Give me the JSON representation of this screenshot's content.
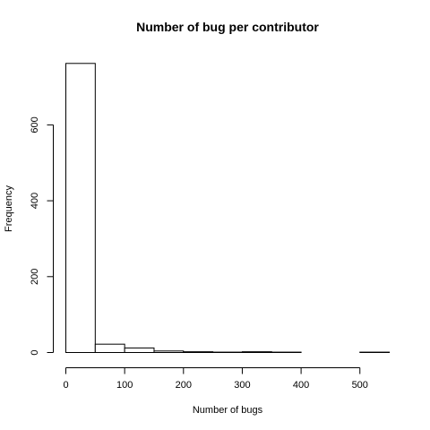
{
  "chart_data": {
    "type": "bar",
    "title": "Number of bug per contributor",
    "xlabel": "Number of bugs",
    "ylabel": "Frequency",
    "bins": [
      {
        "start": 0,
        "end": 50,
        "count": 762
      },
      {
        "start": 50,
        "end": 100,
        "count": 22
      },
      {
        "start": 100,
        "end": 150,
        "count": 12
      },
      {
        "start": 150,
        "end": 200,
        "count": 4
      },
      {
        "start": 200,
        "end": 250,
        "count": 2
      },
      {
        "start": 250,
        "end": 300,
        "count": 1
      },
      {
        "start": 300,
        "end": 350,
        "count": 2
      },
      {
        "start": 350,
        "end": 400,
        "count": 1
      },
      {
        "start": 400,
        "end": 450,
        "count": 0
      },
      {
        "start": 450,
        "end": 500,
        "count": 0
      },
      {
        "start": 500,
        "end": 550,
        "count": 1
      }
    ],
    "xlim": [
      0,
      550
    ],
    "ylim": [
      0,
      762
    ],
    "xticks": [
      0,
      100,
      200,
      300,
      400,
      500
    ],
    "xtick_labels": [
      "0",
      "100",
      "200",
      "300",
      "400",
      "500"
    ],
    "yticks": [
      0,
      200,
      400,
      600
    ],
    "ytick_labels": [
      "0",
      "200",
      "400",
      "600"
    ],
    "grid": false,
    "legend": "none"
  }
}
